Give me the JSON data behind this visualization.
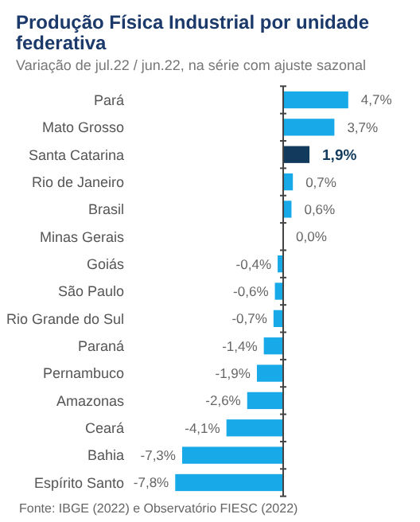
{
  "chart_data": {
    "type": "bar",
    "orientation": "horizontal",
    "title": "Produção Física Industrial por unidade federativa",
    "subtitle": "Variação de jul.22 / jun.22, na série com ajuste sazonal",
    "categories": [
      "Pará",
      "Mato Grosso",
      "Santa Catarina",
      "Rio de Janeiro",
      "Brasil",
      "Minas Gerais",
      "Goiás",
      "São Paulo",
      "Rio Grande do Sul",
      "Paraná",
      "Pernambuco",
      "Amazonas",
      "Ceará",
      "Bahia",
      "Espírito Santo"
    ],
    "values": [
      4.7,
      3.7,
      1.9,
      0.7,
      0.6,
      0.0,
      -0.4,
      -0.6,
      -0.7,
      -1.4,
      -1.9,
      -2.6,
      -4.1,
      -7.3,
      -7.8
    ],
    "colors": [
      "#17a9e8",
      "#17a9e8",
      "#123a5c",
      "#17a9e8",
      "#17a9e8",
      "#17a9e8",
      "#17a9e8",
      "#17a9e8",
      "#17a9e8",
      "#17a9e8",
      "#17a9e8",
      "#17a9e8",
      "#17a9e8",
      "#17a9e8",
      "#17a9e8"
    ],
    "value_labels": [
      "4,7%",
      "3,7%",
      "1,9%",
      "0,7%",
      "0,6%",
      "0,0%",
      "-0,4%",
      "-0,6%",
      "-0,7%",
      "-1,4%",
      "-1,9%",
      "-2,6%",
      "-4,1%",
      "-7,3%",
      "-7,8%"
    ],
    "annotations": [
      "Fonte: IBGE (2022) e Observatório FIESC (2022)"
    ]
  }
}
